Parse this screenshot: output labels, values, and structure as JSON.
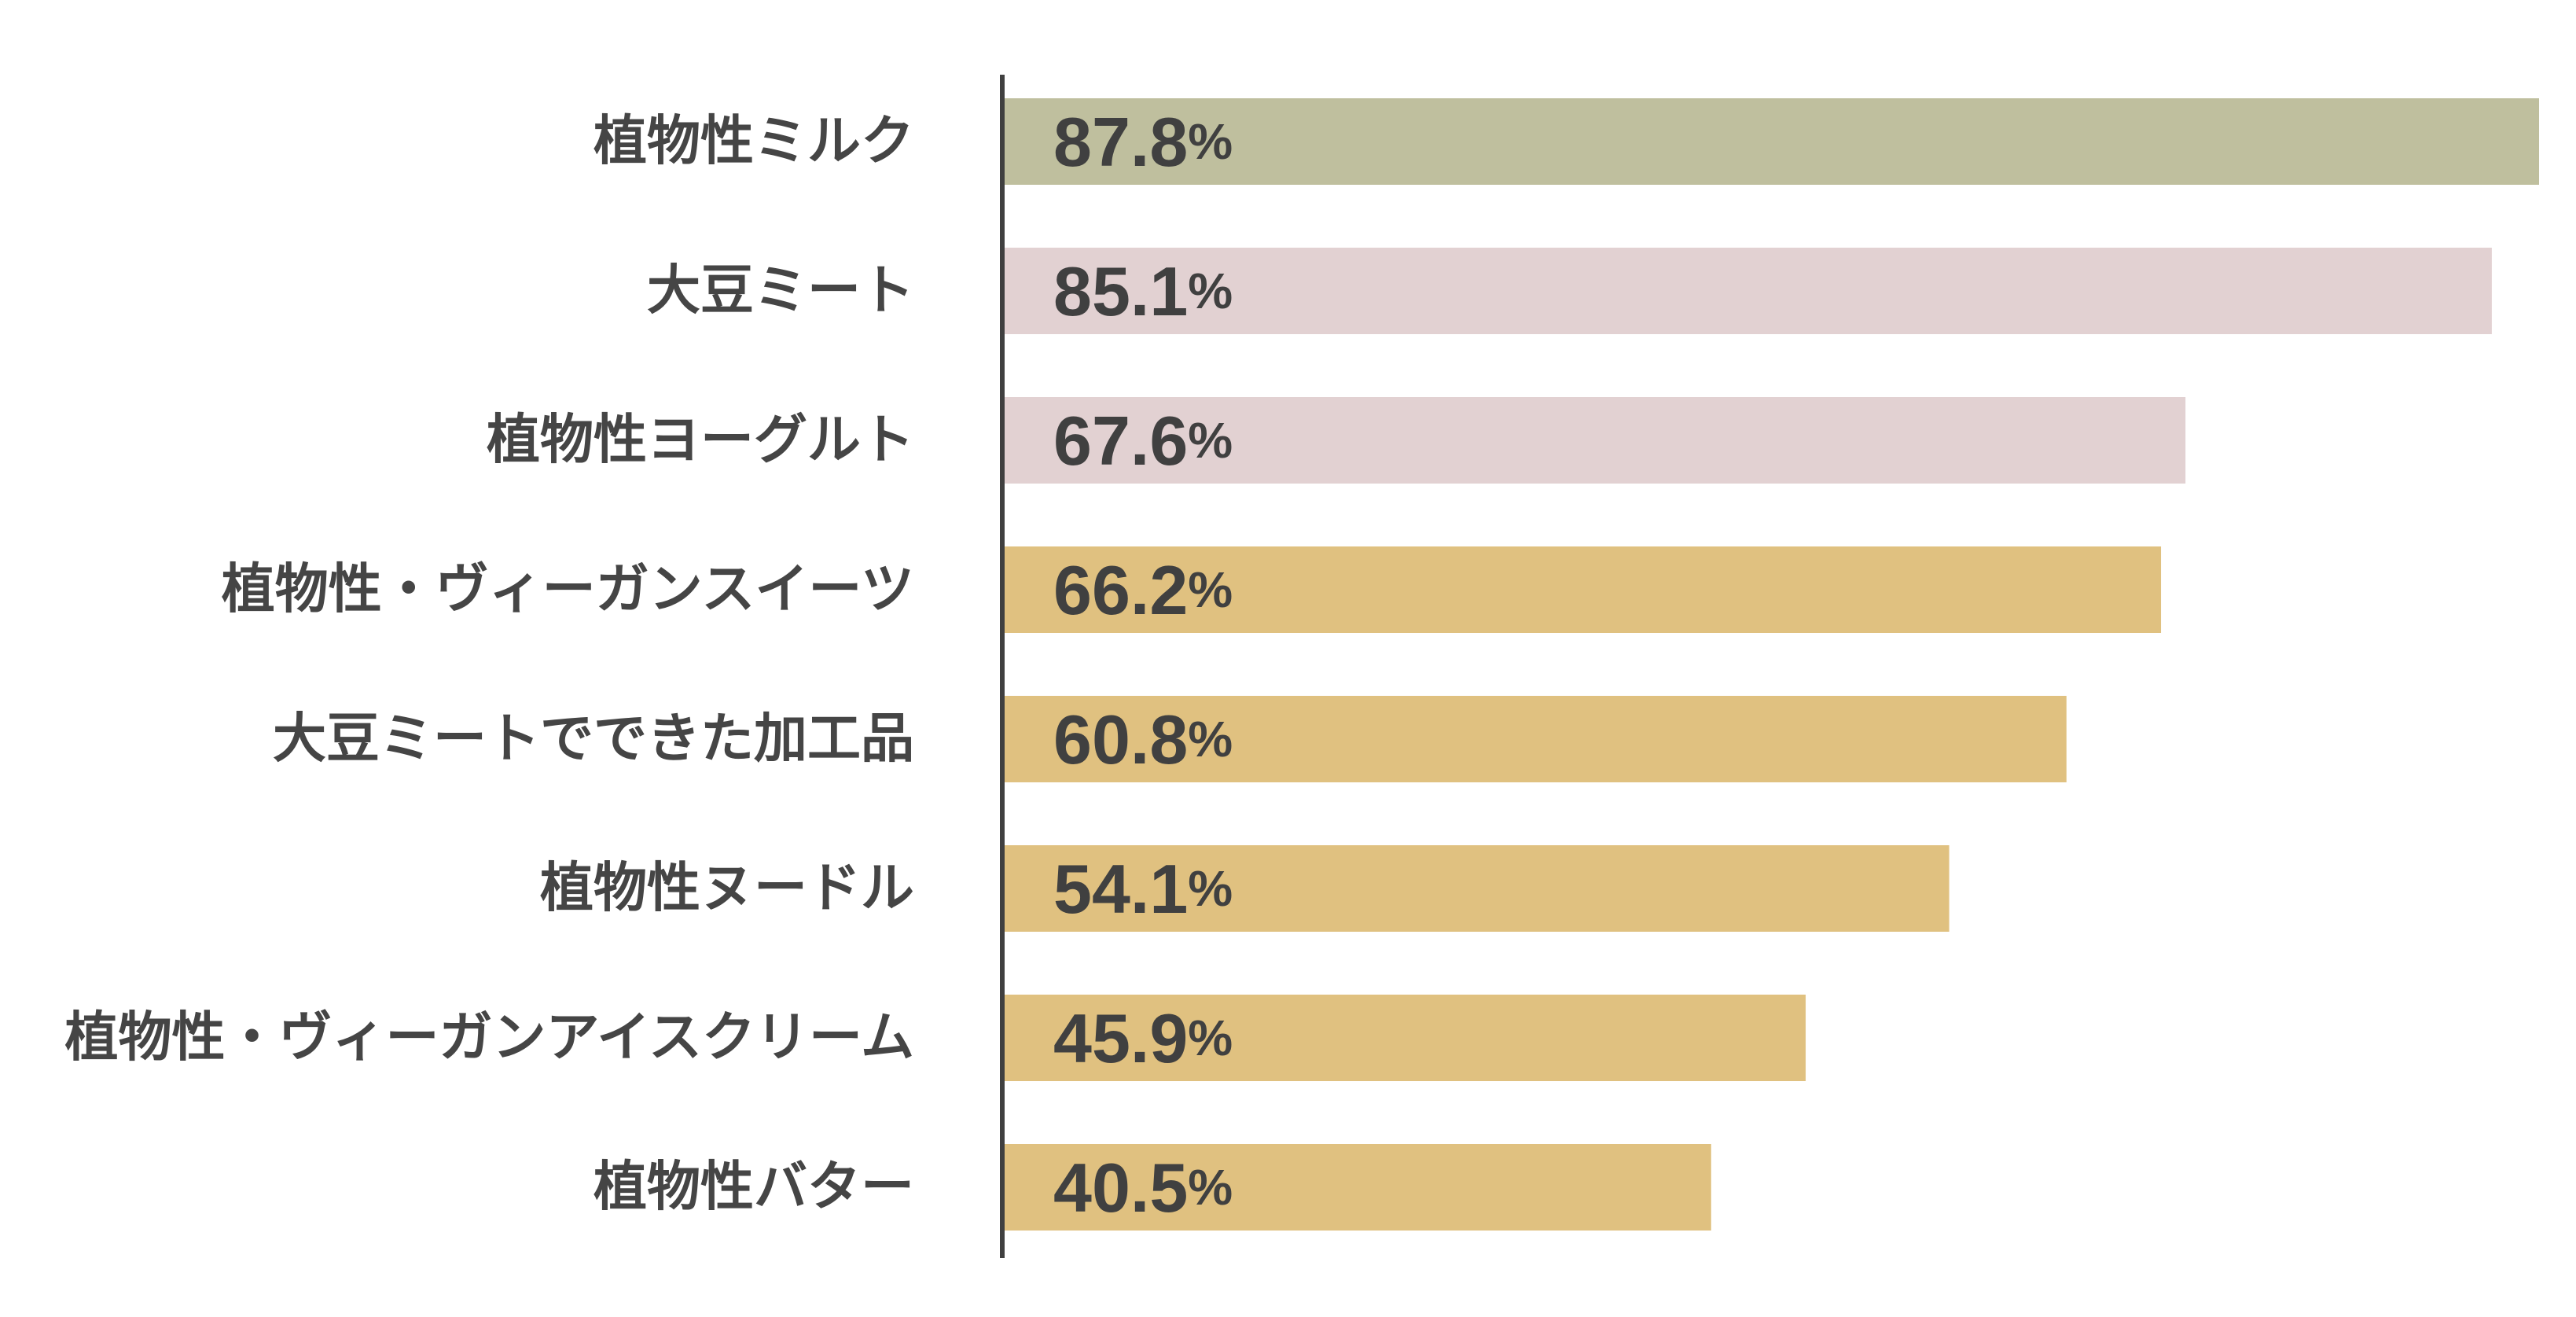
{
  "chart_data": {
    "type": "bar",
    "orientation": "horizontal",
    "categories": [
      "植物性ミルク",
      "大豆ミート",
      "植物性ヨーグルト",
      "植物性・ヴィーガンスイーツ",
      "大豆ミートでできた加工品",
      "植物性ヌードル",
      "植物性・ヴィーガンアイスクリーム",
      "植物性バター"
    ],
    "values": [
      87.8,
      85.1,
      67.6,
      66.2,
      60.8,
      54.1,
      45.9,
      40.5
    ],
    "value_labels": [
      "87.8",
      "85.1",
      "67.6",
      "66.2",
      "60.8",
      "54.1",
      "45.9",
      "40.5"
    ],
    "value_unit": "%",
    "bar_colors": [
      "#bfbf9e",
      "#e2d1d2",
      "#e2d1d2",
      "#e0c180",
      "#e0c180",
      "#e0c180",
      "#e0c180",
      "#e0c180"
    ],
    "axis_color": "#404040",
    "xlim": [
      0,
      87.8
    ],
    "grid": false,
    "legend": "none"
  }
}
